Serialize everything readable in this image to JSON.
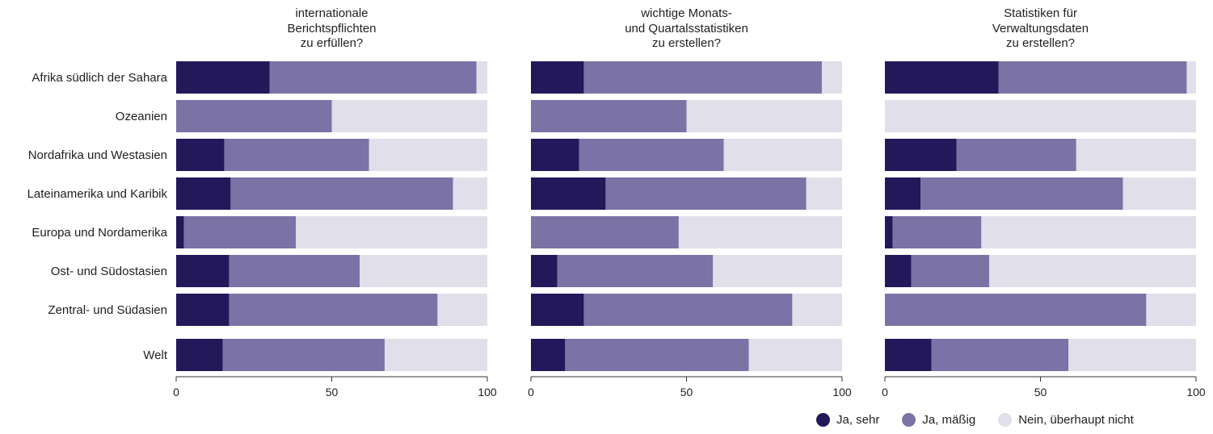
{
  "chart_data": {
    "type": "bar",
    "orientation": "horizontal",
    "stacked": true,
    "categories": [
      "Afrika südlich der Sahara",
      "Ozeanien",
      "Nordafrika und Westasien",
      "Lateinamerika und Karibik",
      "Europa und Nordamerika",
      "Ost- und Südostasien",
      "Zentral- und Südasien",
      "Welt"
    ],
    "xlim": [
      0,
      100
    ],
    "ticks": [
      "0",
      "50",
      "100"
    ],
    "legend": [
      "Ja, sehr",
      "Ja, mäßig",
      "Nein, überhaupt nicht"
    ],
    "legend_position": "bottom-right",
    "colors": [
      "#22185a",
      "#7b72a5",
      "#e0dfea"
    ],
    "panels": [
      {
        "title": [
          "internationale",
          "Berichtspflichten",
          "zu erfüllen?"
        ],
        "series": [
          {
            "name": "Ja, sehr",
            "values": [
              30,
              0,
              15.5,
              17.5,
              2.5,
              17,
              17,
              15
            ]
          },
          {
            "name": "Ja, mäßig",
            "values": [
              66.5,
              50,
              46.5,
              71.5,
              36,
              42,
              67,
              52
            ]
          },
          {
            "name": "Nein, überhaupt nicht",
            "values": [
              3.5,
              50,
              38,
              11,
              61.5,
              41,
              16,
              33
            ]
          }
        ]
      },
      {
        "title": [
          "wichtige Monats-",
          "und Quartalsstatistiken",
          "zu erstellen?"
        ],
        "series": [
          {
            "name": "Ja, sehr",
            "values": [
              17,
              0,
              15.5,
              24,
              0,
              8.5,
              17,
              11
            ]
          },
          {
            "name": "Ja, mäßig",
            "values": [
              76.5,
              50,
              46.5,
              64.5,
              47.5,
              50,
              67,
              59
            ]
          },
          {
            "name": "Nein, überhaupt nicht",
            "values": [
              6.5,
              50,
              38,
              11.5,
              52.5,
              41.5,
              16,
              30
            ]
          }
        ]
      },
      {
        "title": [
          "Statistiken für",
          "Verwaltungsdaten",
          "zu erstellen?"
        ],
        "series": [
          {
            "name": "Ja, sehr",
            "values": [
              36.5,
              0,
              23,
              11.5,
              2.5,
              8.5,
              0,
              15
            ]
          },
          {
            "name": "Ja, mäßig",
            "values": [
              60.5,
              0,
              38.5,
              65,
              28.5,
              25,
              84,
              44
            ]
          },
          {
            "name": "Nein, überhaupt nicht",
            "values": [
              3,
              100,
              38.5,
              23.5,
              69,
              66.5,
              16,
              41
            ]
          }
        ]
      }
    ]
  }
}
